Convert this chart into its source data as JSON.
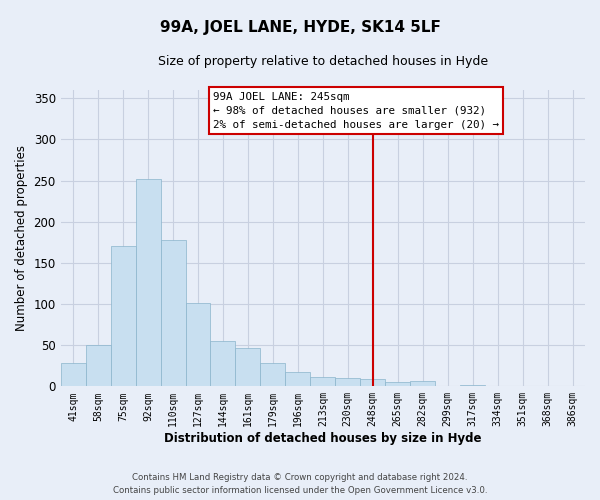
{
  "title": "99A, JOEL LANE, HYDE, SK14 5LF",
  "subtitle": "Size of property relative to detached houses in Hyde",
  "xlabel": "Distribution of detached houses by size in Hyde",
  "ylabel": "Number of detached properties",
  "categories": [
    "41sqm",
    "58sqm",
    "75sqm",
    "92sqm",
    "110sqm",
    "127sqm",
    "144sqm",
    "161sqm",
    "179sqm",
    "196sqm",
    "213sqm",
    "230sqm",
    "248sqm",
    "265sqm",
    "282sqm",
    "299sqm",
    "317sqm",
    "334sqm",
    "351sqm",
    "368sqm",
    "386sqm"
  ],
  "values": [
    28,
    50,
    170,
    252,
    178,
    101,
    55,
    46,
    28,
    17,
    11,
    10,
    9,
    5,
    6,
    0,
    2,
    0,
    0,
    0,
    1
  ],
  "bar_color": "#c8dff0",
  "bar_edge_color": "#8ab4cc",
  "vline_x": 12,
  "vline_color": "#cc0000",
  "annotation_title": "99A JOEL LANE: 245sqm",
  "annotation_line1": "← 98% of detached houses are smaller (932)",
  "annotation_line2": "2% of semi-detached houses are larger (20) →",
  "ylim": [
    0,
    360
  ],
  "yticks": [
    0,
    50,
    100,
    150,
    200,
    250,
    300,
    350
  ],
  "footer1": "Contains HM Land Registry data © Crown copyright and database right 2024.",
  "footer2": "Contains public sector information licensed under the Open Government Licence v3.0.",
  "background_color": "#e8eef8",
  "grid_color": "#c8d0e0"
}
